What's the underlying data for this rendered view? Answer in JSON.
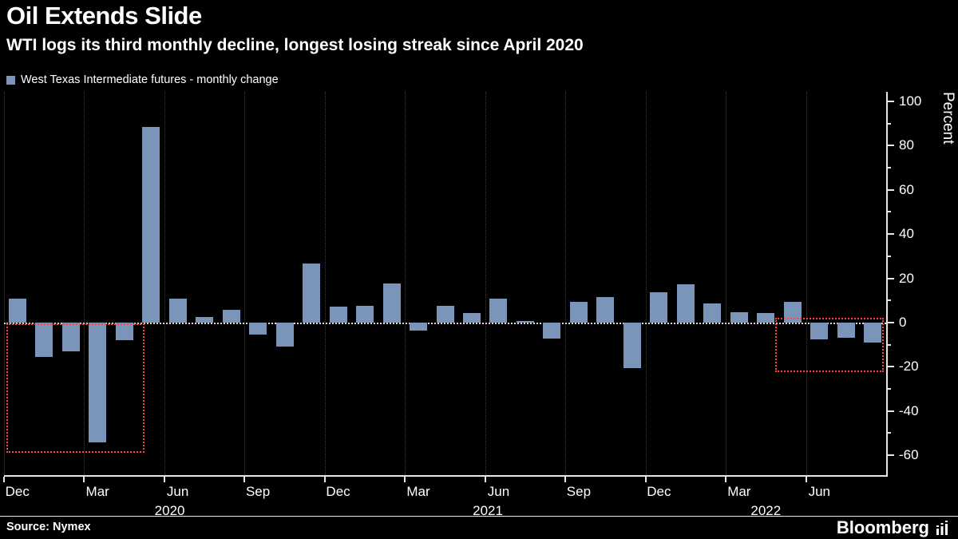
{
  "header": {
    "title": "Oil Extends Slide",
    "subtitle": "WTI logs its third monthly decline, longest losing streak since April 2020"
  },
  "legend": {
    "label": "West Texas Intermediate futures - monthly change",
    "swatch_color": "#7a95b9"
  },
  "chart_data": {
    "type": "bar",
    "title": "Oil Extends Slide",
    "ylabel": "Percent",
    "ylim": [
      -60,
      100
    ],
    "yticks": [
      100,
      80,
      60,
      40,
      20,
      0,
      -20,
      -40,
      -60
    ],
    "grid": "vertical-dotted",
    "legend_position": "top-left",
    "bar_color": "#7a95b9",
    "highlight_color": "#ff4540",
    "categories": [
      "Dec 2019",
      "Jan 2020",
      "Feb 2020",
      "Mar 2020",
      "Apr 2020",
      "May 2020",
      "Jun 2020",
      "Jul 2020",
      "Aug 2020",
      "Sep 2020",
      "Oct 2020",
      "Nov 2020",
      "Dec 2020",
      "Jan 2021",
      "Feb 2021",
      "Mar 2021",
      "Apr 2021",
      "May 2021",
      "Jun 2021",
      "Jul 2021",
      "Aug 2021",
      "Sep 2021",
      "Oct 2021",
      "Nov 2021",
      "Dec 2021",
      "Jan 2022",
      "Feb 2022",
      "Mar 2022",
      "Apr 2022",
      "May 2022",
      "Jun 2022",
      "Jul 2022",
      "Aug 2022"
    ],
    "values": [
      10.7,
      -15.6,
      -13.2,
      -54.2,
      -8,
      88.4,
      10.7,
      2.6,
      5.8,
      -5.6,
      -11,
      26.7,
      7,
      7.6,
      17.8,
      -3.8,
      7.5,
      4.3,
      10.8,
      0.7,
      -7.4,
      9.5,
      11.4,
      -20.8,
      13.6,
      17.2,
      8.6,
      4.8,
      4.4,
      9.5,
      -7.8,
      -6.8,
      -9.2
    ],
    "x_ticks": [
      {
        "slot": 0,
        "label": "Dec"
      },
      {
        "slot": 3,
        "label": "Mar"
      },
      {
        "slot": 6,
        "label": "Jun"
      },
      {
        "slot": 9,
        "label": "Sep"
      },
      {
        "slot": 12,
        "label": "Dec"
      },
      {
        "slot": 15,
        "label": "Mar"
      },
      {
        "slot": 18,
        "label": "Jun"
      },
      {
        "slot": 21,
        "label": "Sep"
      },
      {
        "slot": 24,
        "label": "Dec"
      },
      {
        "slot": 27,
        "label": "Mar"
      },
      {
        "slot": 30,
        "label": "Jun"
      }
    ],
    "year_labels": [
      {
        "slot": 6.2,
        "label": "2020"
      },
      {
        "slot": 18.1,
        "label": "2021"
      },
      {
        "slot": 28.5,
        "label": "2022"
      }
    ],
    "highlight_boxes": [
      {
        "x_start_slot": 0.08,
        "x_end_slot": 5.25,
        "y_top": -0.5,
        "y_bottom": -59
      },
      {
        "x_start_slot": 28.85,
        "x_end_slot": 32.92,
        "y_top": 2.2,
        "y_bottom": -22.5
      }
    ]
  },
  "footer": {
    "source": "Source: Nymex",
    "brand": "Bloomberg"
  }
}
